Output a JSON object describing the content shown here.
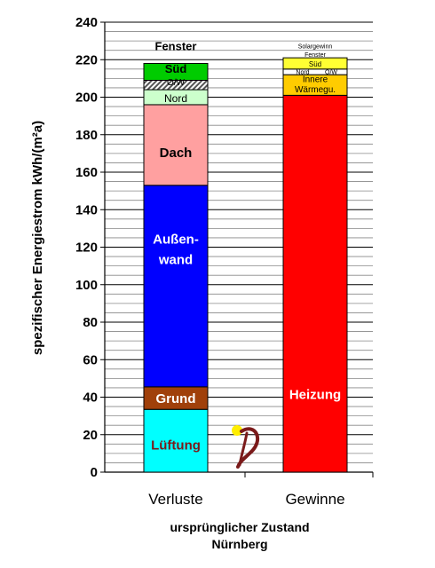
{
  "chart_data": {
    "type": "stacked-bar",
    "ylabel": "spezifischer Energiestrom kWh/(m²a)",
    "ylim": [
      0,
      240
    ],
    "yticks": [
      0,
      20,
      40,
      60,
      80,
      100,
      120,
      140,
      160,
      180,
      200,
      220,
      240
    ],
    "minor_grid_step": 5,
    "caption": [
      "ursprünglicher Zustand",
      "Nürnberg"
    ],
    "bars": [
      {
        "category": "Verluste",
        "segments": [
          {
            "label": "Lüftung",
            "value": 33.5,
            "color": "#00ffff",
            "text_color": "#7a1a1a"
          },
          {
            "label": "Grund",
            "value": 12,
            "color": "#a0400a",
            "text_color": "#ffffff"
          },
          {
            "label": "Außen-",
            "label2": "wand",
            "value": 107.5,
            "color": "#0000ff",
            "text_color": "#ffffff"
          },
          {
            "label": "Dach",
            "value": 43,
            "color": "#ffa0a0",
            "text_color": "#000000"
          },
          {
            "label": "Nord",
            "value": 8,
            "color": "#ccffcc",
            "text_color": "#000000"
          },
          {
            "label": "O/W",
            "value": 5,
            "color": "#999999",
            "text_color": "#000000",
            "hatch": true
          },
          {
            "label": "Süd",
            "value": 9,
            "color": "#00cc00",
            "text_color": "#000000"
          },
          {
            "label": "Fenster",
            "value": 0,
            "color": "#ffffff",
            "text_color": "#000000"
          }
        ]
      },
      {
        "category": "Gewinne",
        "segments": [
          {
            "label": "Heizung",
            "value": 201,
            "color": "#ff0000",
            "text_color": "#ffffff"
          },
          {
            "label": "Innere",
            "label2": "Wärmegu.",
            "value": 11,
            "color": "#ffcc00",
            "text_color": "#000000"
          },
          {
            "label": "Nord",
            "label3": "O/W",
            "value": 3,
            "color": "#ffffff",
            "text_color": "#000000"
          },
          {
            "label": "Süd",
            "value": 6,
            "color": "#ffff33",
            "text_color": "#000000"
          },
          {
            "label": "Fenster",
            "value": 0,
            "color": "#ffffff",
            "text_color": "#000000"
          },
          {
            "label": "Solargewinn",
            "value": 0,
            "color": "#ffffff",
            "text_color": "#000000"
          }
        ]
      }
    ]
  }
}
